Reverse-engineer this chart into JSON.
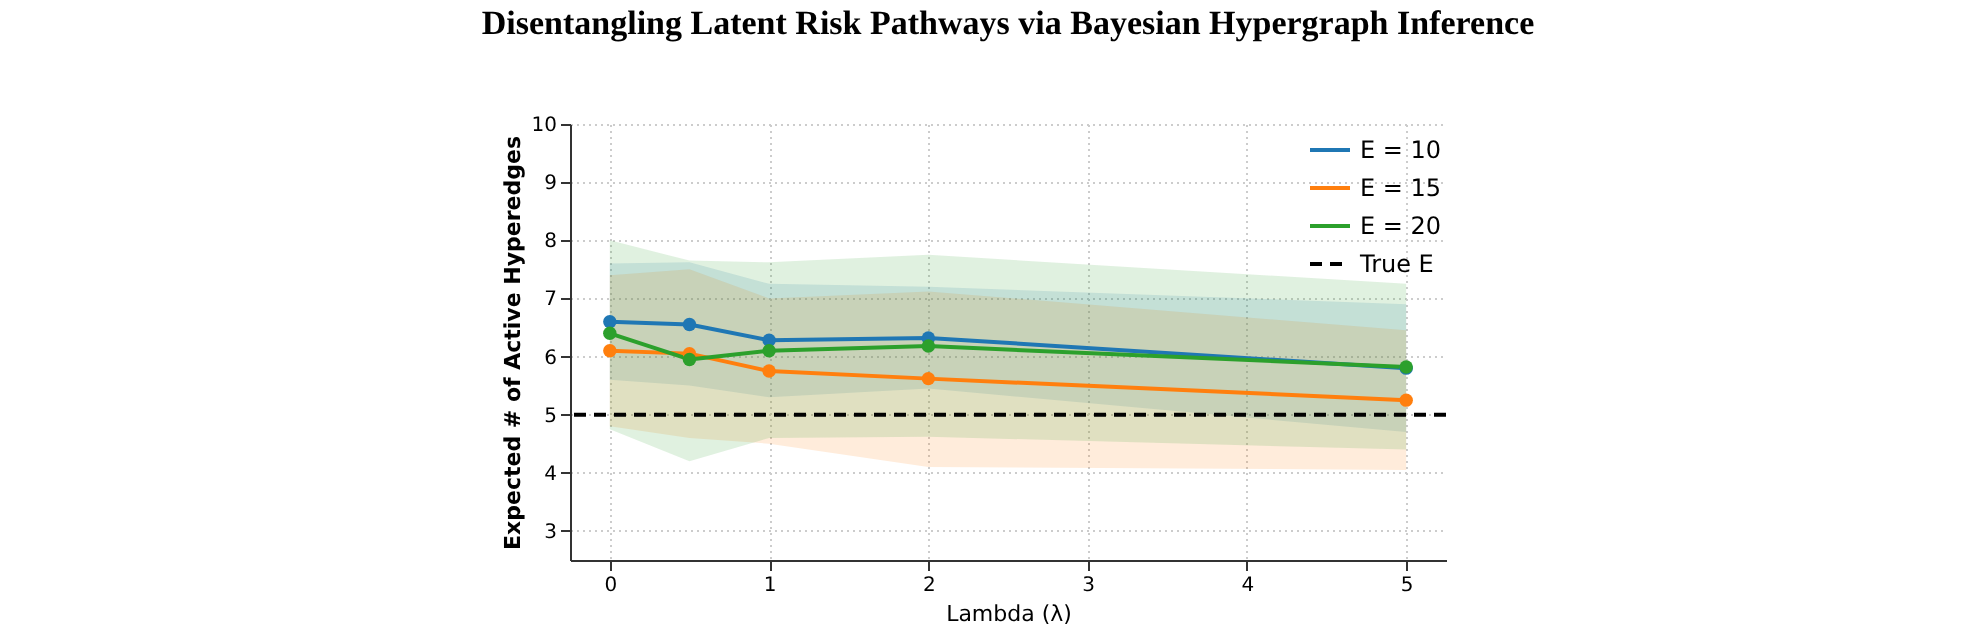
{
  "chart_data": {
    "type": "line",
    "title": "Disentangling Latent Risk Pathways via Bayesian Hypergraph Inference",
    "xlabel": "Lambda (λ)",
    "ylabel": "Expected # of Active Hyperedges",
    "x": [
      0,
      0.5,
      1,
      2,
      5
    ],
    "series": [
      {
        "name": "E = 10",
        "color": "#1f77b4",
        "values": [
          6.6,
          6.55,
          6.28,
          6.32,
          5.8
        ],
        "lower": [
          5.6,
          5.5,
          5.3,
          5.45,
          4.7
        ],
        "upper": [
          7.6,
          7.62,
          7.25,
          7.2,
          6.9
        ]
      },
      {
        "name": "E = 15",
        "color": "#ff7f0e",
        "values": [
          6.1,
          6.05,
          5.75,
          5.62,
          5.25
        ],
        "lower": [
          4.8,
          4.6,
          4.5,
          4.1,
          4.05
        ],
        "upper": [
          7.4,
          7.5,
          7.0,
          7.12,
          6.45
        ]
      },
      {
        "name": "E = 20",
        "color": "#2ca02c",
        "values": [
          6.4,
          5.95,
          6.1,
          6.18,
          5.82
        ],
        "lower": [
          4.75,
          4.2,
          4.6,
          4.62,
          4.4
        ],
        "upper": [
          8.0,
          7.65,
          7.62,
          7.75,
          7.25
        ]
      }
    ],
    "ref_lines": [
      {
        "axis": "y",
        "value": 5,
        "label": "True E",
        "color": "#000000",
        "line_style": "dashed"
      }
    ],
    "xlim": [
      -0.25,
      5.25
    ],
    "xticks": [
      0,
      1,
      2,
      3,
      4,
      5
    ],
    "ylim": [
      2.5,
      10
    ],
    "yticks": [
      3,
      4,
      5,
      6,
      7,
      8,
      9,
      10
    ],
    "grid": true,
    "legend": "top right",
    "marker": "circle",
    "line_style": "solid"
  }
}
